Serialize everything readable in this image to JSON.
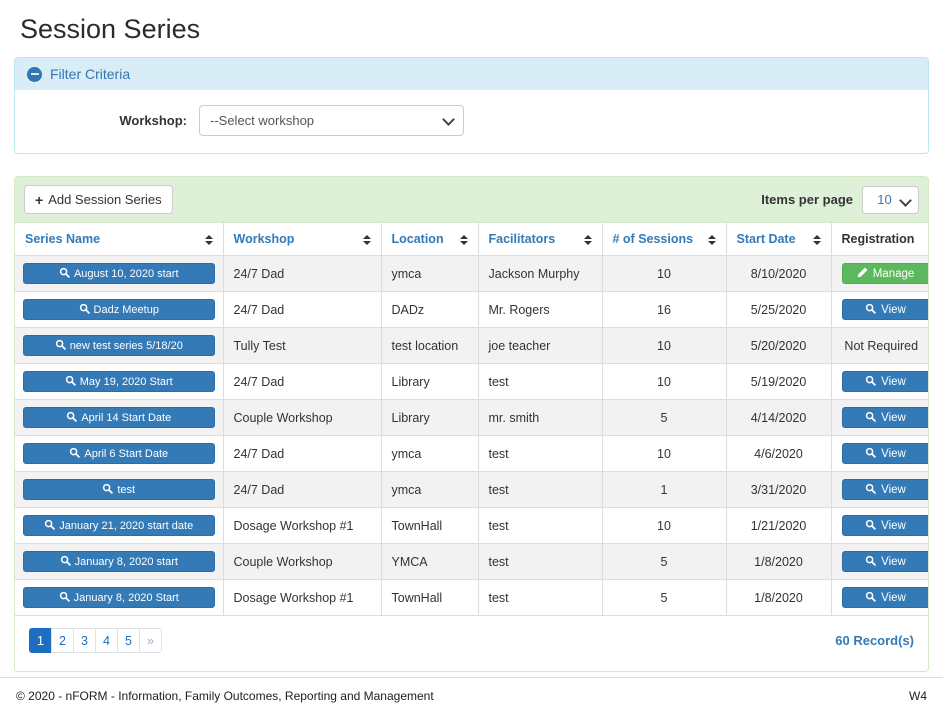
{
  "page": {
    "title": "Session Series"
  },
  "filter": {
    "header": "Filter Criteria",
    "workshop_label": "Workshop:",
    "workshop_value": "--Select workshop"
  },
  "toolbar": {
    "add_button_label": "Add Session Series",
    "items_per_page_label": "Items per page",
    "items_per_page_value": "10"
  },
  "table": {
    "columns": [
      {
        "key": "series_name",
        "label": "Series Name",
        "sortable": true
      },
      {
        "key": "workshop",
        "label": "Workshop",
        "sortable": true
      },
      {
        "key": "location",
        "label": "Location",
        "sortable": true
      },
      {
        "key": "facilitators",
        "label": "Facilitators",
        "sortable": true
      },
      {
        "key": "sessions",
        "label": "# of Sessions",
        "sortable": true
      },
      {
        "key": "start_date",
        "label": "Start Date",
        "sortable": true
      },
      {
        "key": "registration",
        "label": "Registration",
        "sortable": false
      }
    ],
    "rows": [
      {
        "series_name": "August 10, 2020 start",
        "workshop": "24/7 Dad",
        "location": "ymca",
        "facilitators": "Jackson Murphy",
        "sessions": "10",
        "start_date": "8/10/2020",
        "registration": {
          "style": "manage",
          "label": "Manage"
        }
      },
      {
        "series_name": "Dadz Meetup",
        "workshop": "24/7 Dad",
        "location": "DADz",
        "facilitators": "Mr. Rogers",
        "sessions": "16",
        "start_date": "5/25/2020",
        "registration": {
          "style": "view",
          "label": "View"
        }
      },
      {
        "series_name": "new test series 5/18/20",
        "workshop": "Tully Test",
        "location": "test location",
        "facilitators": "joe teacher",
        "sessions": "10",
        "start_date": "5/20/2020",
        "registration": {
          "style": "text",
          "label": "Not Required"
        }
      },
      {
        "series_name": "May 19, 2020 Start",
        "workshop": "24/7 Dad",
        "location": "Library",
        "facilitators": "test",
        "sessions": "10",
        "start_date": "5/19/2020",
        "registration": {
          "style": "view",
          "label": "View"
        }
      },
      {
        "series_name": "April 14 Start Date",
        "workshop": "Couple Workshop",
        "location": "Library",
        "facilitators": "mr. smith",
        "sessions": "5",
        "start_date": "4/14/2020",
        "registration": {
          "style": "view",
          "label": "View"
        }
      },
      {
        "series_name": "April 6 Start Date",
        "workshop": "24/7 Dad",
        "location": "ymca",
        "facilitators": "test",
        "sessions": "10",
        "start_date": "4/6/2020",
        "registration": {
          "style": "view",
          "label": "View"
        }
      },
      {
        "series_name": "test",
        "workshop": "24/7 Dad",
        "location": "ymca",
        "facilitators": "test",
        "sessions": "1",
        "start_date": "3/31/2020",
        "registration": {
          "style": "view",
          "label": "View"
        }
      },
      {
        "series_name": "January 21, 2020 start date",
        "workshop": "Dosage Workshop #1",
        "location": "TownHall",
        "facilitators": "test",
        "sessions": "10",
        "start_date": "1/21/2020",
        "registration": {
          "style": "view",
          "label": "View"
        }
      },
      {
        "series_name": "January 8, 2020 start",
        "workshop": "Couple Workshop",
        "location": "YMCA",
        "facilitators": "test",
        "sessions": "5",
        "start_date": "1/8/2020",
        "registration": {
          "style": "view",
          "label": "View"
        }
      },
      {
        "series_name": "January 8, 2020 Start",
        "workshop": "Dosage Workshop #1",
        "location": "TownHall",
        "facilitators": "test",
        "sessions": "5",
        "start_date": "1/8/2020",
        "registration": {
          "style": "view",
          "label": "View"
        }
      }
    ]
  },
  "pagination": {
    "pages": [
      "1",
      "2",
      "3",
      "4",
      "5",
      "»"
    ],
    "active_page": "1",
    "record_count": "60 Record(s)"
  },
  "footer": {
    "copyright": "© 2020 - nFORM - Information, Family Outcomes, Reporting and Management",
    "version": "W4"
  },
  "colors": {
    "primary_blue": "#337ab7",
    "success_green": "#5cb85c",
    "filter_header_bg": "#d9edf7",
    "toolbar_bg": "#dff0d8",
    "active_page_bg": "#1b6ec2",
    "row_stripe": "#f2f2f2"
  }
}
